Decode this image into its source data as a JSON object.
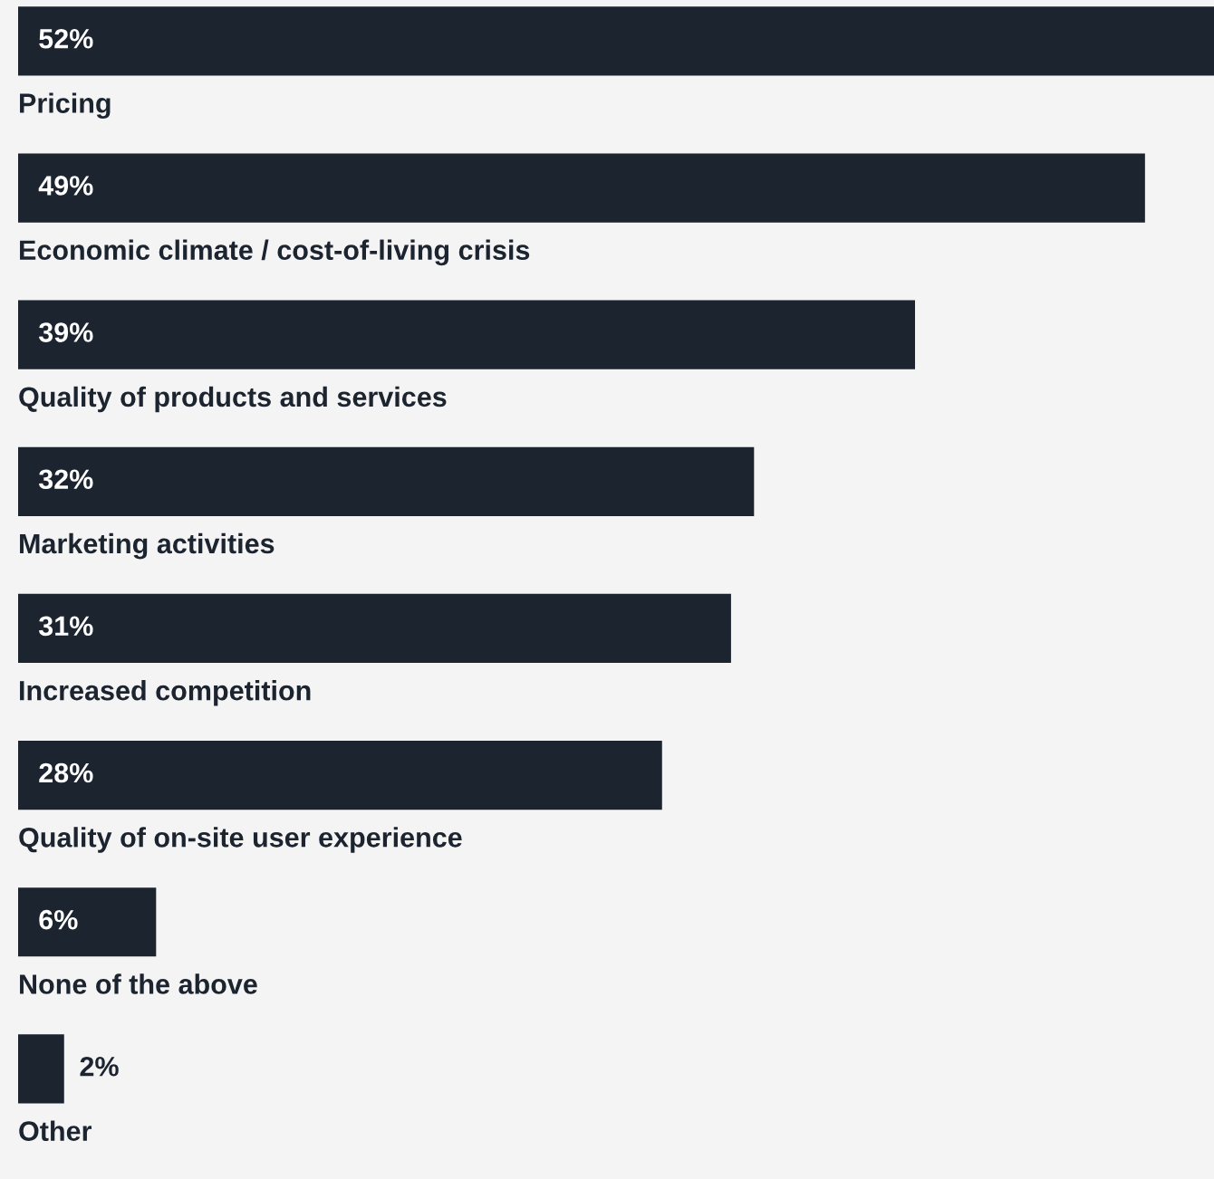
{
  "chart_data": {
    "type": "bar",
    "orientation": "horizontal",
    "categories": [
      "Pricing",
      "Economic climate / cost-of-living crisis",
      "Quality of products and services",
      "Marketing activities",
      "Increased competition",
      "Quality of on-site user experience",
      "None of the above",
      "Other"
    ],
    "values": [
      52,
      49,
      39,
      32,
      31,
      28,
      6,
      2
    ],
    "value_labels": [
      "52%",
      "49%",
      "39%",
      "32%",
      "31%",
      "28%",
      "6%",
      "2%"
    ],
    "color": "#1c2430",
    "xlim": [
      0,
      52
    ]
  }
}
